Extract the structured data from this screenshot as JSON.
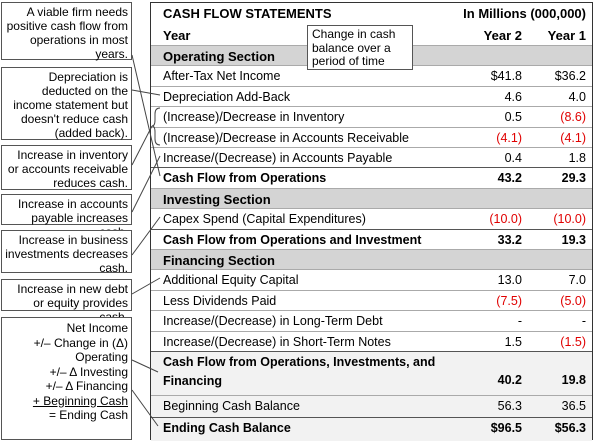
{
  "header": {
    "title": "CASH FLOW STATEMENTS",
    "units": "In Millions (000,000)"
  },
  "columns": [
    "Year",
    "Year 2",
    "Year 1"
  ],
  "callout": "Change in cash balance over a period of time",
  "rows": [
    {
      "label": "Operating Section"
    },
    {
      "label": "After-Tax Net Income",
      "values": [
        "$41.8",
        "$36.2"
      ]
    },
    {
      "label": "Depreciation Add-Back",
      "values": [
        "4.6",
        "4.0"
      ]
    },
    {
      "label": "(Increase)/Decrease in Inventory",
      "values": [
        "0.5",
        "(8.6)"
      ]
    },
    {
      "label": "(Increase)/Decrease in Accounts Receivable",
      "values": [
        "(4.1)",
        "(4.1)"
      ]
    },
    {
      "label": "Increase/(Decrease) in Accounts Payable",
      "values": [
        "0.4",
        "1.8"
      ]
    },
    {
      "label": "Cash Flow from Operations",
      "values": [
        "43.2",
        "29.3"
      ]
    },
    {
      "label": "Investing Section"
    },
    {
      "label": "Capex Spend (Capital Expenditures)",
      "values": [
        "(10.0)",
        "(10.0)"
      ]
    },
    {
      "label": "Cash Flow from Operations and Investment",
      "values": [
        "33.2",
        "19.3"
      ]
    },
    {
      "label": "Financing Section"
    },
    {
      "label": "Additional Equity Capital",
      "values": [
        "13.0",
        "7.0"
      ]
    },
    {
      "label": "Less Dividends Paid",
      "values": [
        "(7.5)",
        "(5.0)"
      ]
    },
    {
      "label": "Increase/(Decrease) in Long-Term Debt",
      "values": [
        "-",
        "-"
      ]
    },
    {
      "label": "Increase/(Decrease) in Short-Term Notes",
      "values": [
        "1.5",
        "(1.5)"
      ]
    },
    {
      "label": "Cash Flow from Operations, Investments, and Financing",
      "values": [
        "40.2",
        "19.8"
      ]
    },
    {
      "label": "Beginning Cash Balance",
      "values": [
        "56.3",
        "36.5"
      ]
    },
    {
      "label": "Ending Cash Balance",
      "values": [
        "$96.5",
        "$56.3"
      ]
    }
  ],
  "notes": [
    "A viable firm needs positive cash flow from operations in most years.",
    "Depreciation is deducted on the income statement but doesn't reduce cash (added back).",
    "Increase in inventory or accounts receivable reduces cash.",
    "Increase in accounts payable increases cash.",
    "Increase in business investments decreases cash.",
    "Increase in new debt or equity provides cash."
  ],
  "formula": [
    "Net Income",
    "+/– Change in (Δ)",
    "Operating",
    "+/– Δ Investing",
    "+/– Δ Financing",
    "+ Beginning Cash",
    "= Ending Cash"
  ]
}
